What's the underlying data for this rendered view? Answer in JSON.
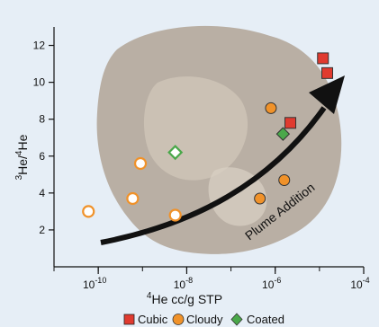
{
  "chart_data": {
    "type": "scatter",
    "xlabel_base": "He cc/g STP",
    "xlabel_sup": "4",
    "ylabel_parts": {
      "sup1": "3",
      "mid": "He/",
      "sup2": "4",
      "end": "He"
    },
    "x_scale": "log",
    "xlim": [
      1e-11,
      0.0001
    ],
    "ylim": [
      0,
      13
    ],
    "x_ticks": [
      {
        "exp": -10,
        "label": "10",
        "sup": "-10"
      },
      {
        "exp": -8,
        "label": "10",
        "sup": "-8"
      },
      {
        "exp": -6,
        "label": "10",
        "sup": "-6"
      },
      {
        "exp": -4,
        "label": "10",
        "sup": "-4"
      }
    ],
    "y_ticks": [
      2,
      4,
      6,
      8,
      10,
      12
    ],
    "grid": false,
    "annotation": "Plume Addition",
    "series": [
      {
        "name": "Cubic",
        "marker": "square",
        "color": "#e03a2f",
        "filled": true,
        "points": [
          {
            "x": 2.2e-06,
            "y": 7.8
          },
          {
            "x": 1.2e-05,
            "y": 11.3
          },
          {
            "x": 1.5e-05,
            "y": 10.5
          }
        ]
      },
      {
        "name": "Cloudy",
        "marker": "circle",
        "color": "#f0922a",
        "filled": true,
        "points": [
          {
            "x": 4.5e-07,
            "y": 3.7
          },
          {
            "x": 8e-07,
            "y": 8.6
          },
          {
            "x": 1.6e-06,
            "y": 4.7
          }
        ]
      },
      {
        "name": "Cloudy (open)",
        "marker": "circle",
        "color": "#f0922a",
        "filled": false,
        "points": [
          {
            "x": 6e-11,
            "y": 3.0
          },
          {
            "x": 6e-10,
            "y": 3.7
          },
          {
            "x": 9e-10,
            "y": 5.6
          },
          {
            "x": 5.5e-09,
            "y": 2.8
          }
        ]
      },
      {
        "name": "Coated",
        "marker": "diamond",
        "color": "#4aa84a",
        "filled": true,
        "points": [
          {
            "x": 1.5e-06,
            "y": 7.2
          }
        ]
      },
      {
        "name": "Coated (open)",
        "marker": "diamond",
        "color": "#4aa84a",
        "filled": false,
        "points": [
          {
            "x": 5.5e-09,
            "y": 6.2
          }
        ]
      }
    ],
    "legend": {
      "position": "bottom",
      "items": [
        {
          "label": "Cubic",
          "marker": "square",
          "color": "#e03a2f"
        },
        {
          "label": "Cloudy",
          "marker": "circle",
          "color": "#f0922a"
        },
        {
          "label": "Coated",
          "marker": "diamond",
          "color": "#4aa84a"
        }
      ]
    }
  },
  "colors": {
    "background": "#e6eef6",
    "photo_fill": "#b5a99c",
    "arrow": "#111111"
  }
}
